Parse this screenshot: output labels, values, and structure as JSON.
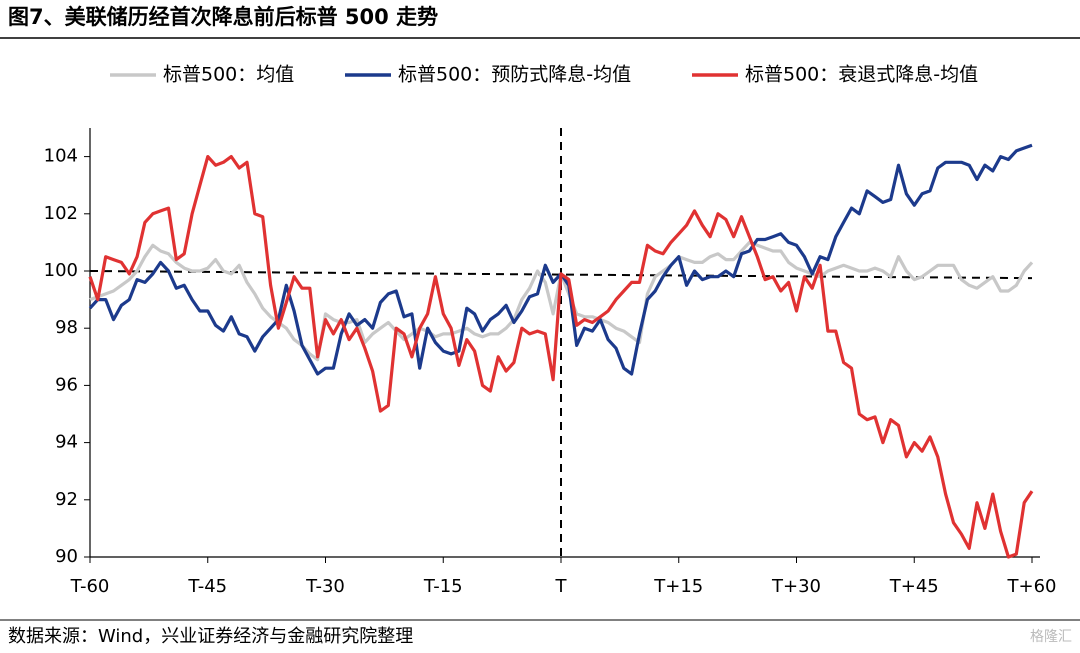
{
  "chart_data": {
    "type": "line",
    "title": "图7、美联储历经首次降息前后标普 500 走势",
    "source": "数据来源：Wind，兴业证券经济与金融研究院整理",
    "watermark": "格隆汇",
    "x": [
      -60,
      -59,
      -58,
      -57,
      -56,
      -55,
      -54,
      -53,
      -52,
      -51,
      -50,
      -49,
      -48,
      -47,
      -46,
      -45,
      -44,
      -43,
      -42,
      -41,
      -40,
      -39,
      -38,
      -37,
      -36,
      -35,
      -34,
      -33,
      -32,
      -31,
      -30,
      -29,
      -28,
      -27,
      -26,
      -25,
      -24,
      -23,
      -22,
      -21,
      -20,
      -19,
      -18,
      -17,
      -16,
      -15,
      -14,
      -13,
      -12,
      -11,
      -10,
      -9,
      -8,
      -7,
      -6,
      -5,
      -4,
      -3,
      -2,
      -1,
      0,
      1,
      2,
      3,
      4,
      5,
      6,
      7,
      8,
      9,
      10,
      11,
      12,
      13,
      14,
      15,
      16,
      17,
      18,
      19,
      20,
      21,
      22,
      23,
      24,
      25,
      26,
      27,
      28,
      29,
      30,
      31,
      32,
      33,
      34,
      35,
      36,
      37,
      38,
      39,
      40,
      41,
      42,
      43,
      44,
      45,
      46,
      47,
      48,
      49,
      50,
      51,
      52,
      53,
      54,
      55,
      56,
      57,
      58,
      59,
      60
    ],
    "series": [
      {
        "name": "标普500：均值",
        "color": "#c8c8c8",
        "values": [
          99,
          99.1,
          99.2,
          99.3,
          99.5,
          99.7,
          100,
          100.5,
          100.9,
          100.7,
          100.6,
          100.3,
          100.1,
          100,
          100,
          100.1,
          100.4,
          100,
          99.9,
          100.2,
          99.6,
          99.2,
          98.7,
          98.4,
          98.2,
          98,
          97.6,
          97.4,
          97.1,
          96.9,
          98.5,
          98.3,
          98.2,
          98.2,
          98.3,
          97.5,
          97.8,
          98,
          98.2,
          97.9,
          97.6,
          97.8,
          98,
          97.9,
          97.7,
          97.8,
          97.8,
          97.9,
          98,
          97.8,
          97.7,
          97.8,
          97.8,
          98,
          98.3,
          99,
          99.4,
          100,
          99.6,
          98.5,
          99.9,
          99.2,
          98.5,
          98.4,
          98.4,
          98.3,
          98.2,
          98,
          97.9,
          97.7,
          97.5,
          99.2,
          99.8,
          100,
          100.2,
          100.5,
          100.4,
          100.3,
          100.3,
          100.5,
          100.6,
          100.4,
          100.4,
          100.7,
          101,
          100.9,
          100.8,
          100.7,
          100.7,
          100.3,
          100.1,
          100,
          99.9,
          99.8,
          100,
          100.1,
          100.2,
          100.1,
          100,
          100,
          100.1,
          100,
          99.8,
          100.5,
          100,
          99.7,
          99.8,
          100,
          100.2,
          100.2,
          100.2,
          99.7,
          99.5,
          99.4,
          99.6,
          99.8,
          99.3,
          99.3,
          99.5,
          100,
          100.3
        ]
      },
      {
        "name": "标普500：预防式降息-均值",
        "color": "#1c3a8c",
        "values": [
          98.7,
          99,
          99,
          98.3,
          98.8,
          99,
          99.7,
          99.6,
          99.9,
          100.3,
          100,
          99.4,
          99.5,
          99,
          98.6,
          98.6,
          98.1,
          97.9,
          98.4,
          97.8,
          97.7,
          97.2,
          97.7,
          98,
          98.3,
          99.5,
          98.6,
          97.4,
          96.9,
          96.4,
          96.6,
          96.6,
          97.8,
          98.5,
          98.1,
          98.3,
          98,
          98.9,
          99.2,
          99.3,
          98.4,
          98.5,
          96.6,
          98,
          97.5,
          97.2,
          97.1,
          97.2,
          98.7,
          98.5,
          97.9,
          98.3,
          98.5,
          98.8,
          98.2,
          98.6,
          99.1,
          99.2,
          100.2,
          99.6,
          99.9,
          99.5,
          97.4,
          98,
          97.9,
          98.3,
          97.6,
          97.3,
          96.6,
          96.4,
          97.8,
          99,
          99.3,
          99.8,
          100.2,
          100.5,
          99.5,
          100,
          99.7,
          99.8,
          99.8,
          100,
          99.8,
          100.6,
          100.7,
          101.1,
          101.1,
          101.2,
          101.3,
          101,
          100.9,
          100.5,
          99.9,
          100.5,
          100.4,
          101.2,
          101.7,
          102.2,
          102,
          102.8,
          102.6,
          102.4,
          102.5,
          103.7,
          102.7,
          102.3,
          102.7,
          102.8,
          103.6,
          103.8,
          103.8,
          103.8,
          103.7,
          103.2,
          103.7,
          103.5,
          104,
          103.9,
          104.2,
          104.3,
          104.4
        ]
      },
      {
        "name": "标普500：衰退式降息-均值",
        "color": "#e03232",
        "values": [
          99.8,
          99,
          100.5,
          100.4,
          100.3,
          99.9,
          100.5,
          101.7,
          102,
          102.1,
          102.2,
          100.4,
          100.6,
          102,
          103,
          104,
          103.7,
          103.8,
          104,
          103.6,
          103.8,
          102,
          101.9,
          99.5,
          98,
          98.9,
          99.8,
          99.4,
          99.4,
          97,
          98.3,
          97.8,
          98.3,
          97.6,
          98,
          97.3,
          96.5,
          95.1,
          95.3,
          98,
          97.8,
          97,
          98,
          98.5,
          99.8,
          98.5,
          98,
          96.7,
          97.6,
          97.2,
          96,
          95.8,
          97,
          96.5,
          96.8,
          98,
          97.8,
          97.9,
          97.8,
          96.2,
          99.9,
          99.7,
          98.1,
          98.3,
          98.2,
          98.4,
          98.6,
          99,
          99.3,
          99.6,
          99.6,
          100.9,
          100.7,
          100.6,
          101,
          101.3,
          101.6,
          102.1,
          101.6,
          101.2,
          102,
          101.8,
          101.2,
          101.9,
          101.2,
          100.5,
          99.7,
          99.8,
          99.3,
          99.6,
          98.6,
          99.8,
          99.4,
          100.2,
          97.9,
          97.9,
          96.8,
          96.6,
          95,
          94.8,
          94.9,
          94,
          94.8,
          94.6,
          93.5,
          94,
          93.7,
          94.2,
          93.5,
          92.2,
          91.2,
          90.8,
          90.3,
          91.9,
          91,
          92.2,
          90.9,
          90,
          90.1,
          91.9,
          92.3
        ]
      }
    ],
    "xlim": [
      -60,
      60
    ],
    "xticks": [
      {
        "value": -60,
        "label": "T-60"
      },
      {
        "value": -45,
        "label": "T-45"
      },
      {
        "value": -30,
        "label": "T-30"
      },
      {
        "value": -15,
        "label": "T-15"
      },
      {
        "value": 0,
        "label": "T"
      },
      {
        "value": 15,
        "label": "T+15"
      },
      {
        "value": 30,
        "label": "T+30"
      },
      {
        "value": 45,
        "label": "T+45"
      },
      {
        "value": 60,
        "label": "T+60"
      }
    ],
    "ylim": [
      90,
      105
    ],
    "yticks": [
      90,
      92,
      94,
      96,
      98,
      100,
      102,
      104
    ],
    "hline": {
      "x": [
        -60,
        60
      ],
      "y": [
        100,
        99.75
      ]
    },
    "vline": 0,
    "grid": false,
    "legend": "top"
  }
}
